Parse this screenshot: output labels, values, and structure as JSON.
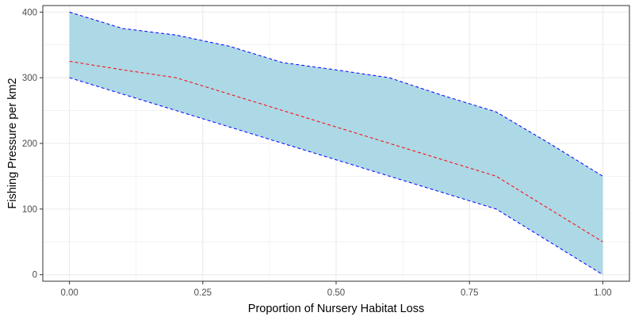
{
  "chart_data": {
    "type": "area",
    "title": "",
    "xlabel": "Proportion of Nursery Habitat Loss",
    "ylabel": "Fishing Pressure per km2",
    "xlim": [
      -0.05,
      1.05
    ],
    "ylim": [
      -10,
      410
    ],
    "x_ticks": [
      0.0,
      0.25,
      0.5,
      0.75,
      1.0
    ],
    "x_tick_labels": [
      "0.00",
      "0.25",
      "0.50",
      "0.75",
      "1.00"
    ],
    "y_ticks": [
      0,
      100,
      200,
      300,
      400
    ],
    "y_tick_labels": [
      "0",
      "100",
      "200",
      "300",
      "400"
    ],
    "grid": true,
    "band": {
      "fill": "#add8e6",
      "edge_color": "#0000ff",
      "x": [
        0.0,
        0.1,
        0.2,
        0.3,
        0.4,
        0.5,
        0.6,
        0.7,
        0.8,
        0.9,
        1.0
      ],
      "upper": [
        400,
        375,
        365,
        348,
        323,
        312,
        300,
        273,
        248,
        200,
        150
      ],
      "lower": [
        300,
        275,
        250,
        225,
        200,
        175,
        150,
        125,
        100,
        50,
        0
      ]
    },
    "series": [
      {
        "color": "#ff0000",
        "style": "dashed",
        "x": [
          0.0,
          0.1,
          0.2,
          0.3,
          0.4,
          0.5,
          0.6,
          0.7,
          0.8,
          0.9,
          1.0
        ],
        "values": [
          325,
          312,
          300,
          275,
          250,
          225,
          200,
          175,
          150,
          100,
          50
        ]
      }
    ],
    "panel_background": "#ffffff",
    "grid_color": "#ebebeb",
    "panel_border_color": "#333333"
  }
}
